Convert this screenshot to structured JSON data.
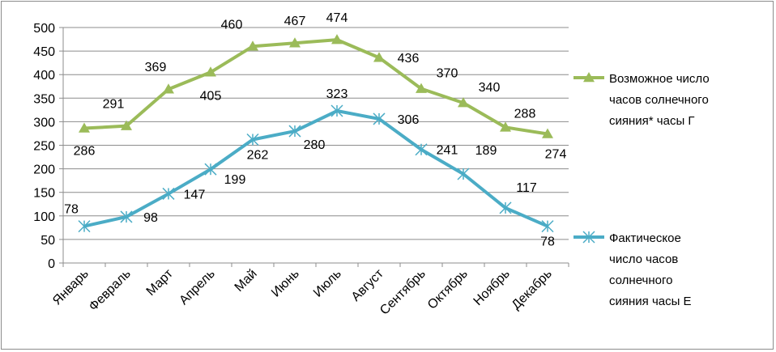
{
  "chart_data": {
    "type": "line",
    "categories": [
      "Январь",
      "Февраль",
      "Март",
      "Апрель",
      "Май",
      "Июнь",
      "Июль",
      "Август",
      "Сентябрь",
      "Октябрь",
      "Ноябрь",
      "Декабрь"
    ],
    "ylim": [
      0,
      500
    ],
    "yticks": [
      0,
      50,
      100,
      150,
      200,
      250,
      300,
      350,
      400,
      450,
      500
    ],
    "grid": "horizontal",
    "legend_position": "right",
    "series": [
      {
        "name": "Возможное число часов солнечного сияния* часы Г",
        "legend_lines": [
          "Возможное число",
          "часов солнечного",
          "сияния* часы Г"
        ],
        "values": [
          286,
          291,
          369,
          405,
          460,
          467,
          474,
          436,
          370,
          340,
          288,
          274
        ],
        "color": "#9bbb59",
        "marker": "triangle"
      },
      {
        "name": "Фактическое число часов солнечного сияния часы Е",
        "legend_lines": [
          "Фактическое",
          "число часов",
          "солнечного",
          "сияния часы Е"
        ],
        "values": [
          78,
          98,
          147,
          199,
          262,
          280,
          323,
          306,
          241,
          189,
          117,
          78
        ],
        "color": "#4bacc6",
        "marker": "star"
      }
    ]
  }
}
